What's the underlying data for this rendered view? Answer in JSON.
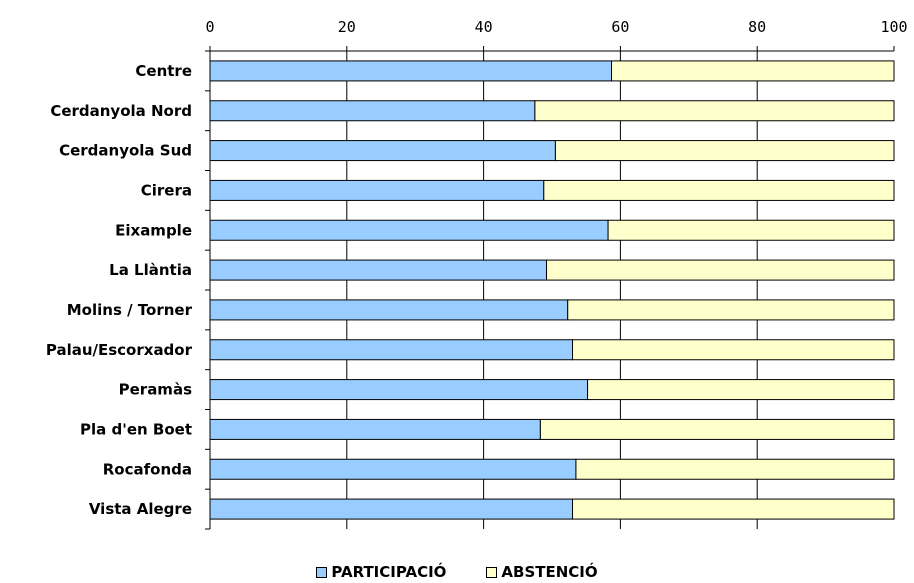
{
  "chart_data": {
    "type": "bar",
    "orientation": "horizontal",
    "stacked": true,
    "xlim": [
      0,
      100
    ],
    "x_ticks": [
      0,
      20,
      40,
      60,
      80,
      100
    ],
    "categories": [
      "Centre",
      "Cerdanyola Nord",
      "Cerdanyola Sud",
      "Cirera",
      "Eixample",
      "La Llàntia",
      "Molins / Torner",
      "Palau/Escorxador",
      "Peramàs",
      "Pla d'en Boet",
      "Rocafonda",
      "Vista Alegre"
    ],
    "series": [
      {
        "name": "PARTICIPACIÓ",
        "color": "#99CCFF",
        "values": [
          58.7,
          47.5,
          50.5,
          48.8,
          58.2,
          49.2,
          52.3,
          53.0,
          55.2,
          48.3,
          53.5,
          53.0
        ]
      },
      {
        "name": "ABSTENCIÓ",
        "color": "#FFFFCC",
        "values": [
          41.3,
          52.5,
          49.5,
          51.2,
          41.8,
          50.8,
          47.7,
          47.0,
          44.8,
          51.7,
          46.5,
          47.0
        ]
      }
    ],
    "grid": true,
    "legend_position": "bottom"
  }
}
